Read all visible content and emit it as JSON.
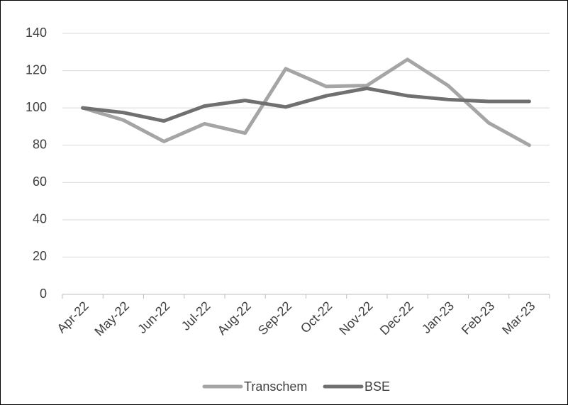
{
  "chart_data": {
    "type": "line",
    "categories": [
      "Apr-22",
      "May-22",
      "Jun-22",
      "Jul-22",
      "Aug-22",
      "Sep-22",
      "Oct-22",
      "Nov-22",
      "Dec-22",
      "Jan-23",
      "Feb-23",
      "Mar-23"
    ],
    "series": [
      {
        "name": "Transchem",
        "color": "#a5a5a5",
        "values": [
          100,
          93.5,
          82,
          91.5,
          86.5,
          121,
          111.5,
          112,
          126,
          112,
          92,
          80
        ]
      },
      {
        "name": "BSE",
        "color": "#707070",
        "values": [
          100,
          97.5,
          93,
          101,
          104,
          100.5,
          106.5,
          110.5,
          106.5,
          104.5,
          103.5,
          103.5
        ]
      }
    ],
    "ylim": [
      0,
      140
    ],
    "yticks": [
      0,
      20,
      40,
      60,
      80,
      100,
      120,
      140
    ],
    "grid": true,
    "legend": "bottom"
  }
}
